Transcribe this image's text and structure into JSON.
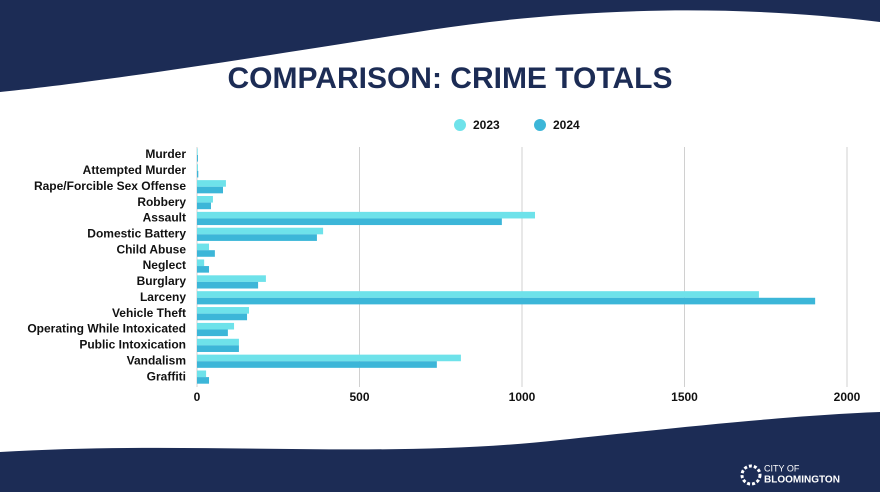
{
  "chart_data": {
    "type": "bar",
    "orientation": "horizontal",
    "title": "COMPARISON: CRIME TOTALS",
    "categories": [
      "Murder",
      "Attempted Murder",
      "Rape/Forcible Sex Offense",
      "Robbery",
      "Assault",
      "Domestic Battery",
      "Child Abuse",
      "Neglect",
      "Burglary",
      "Larceny",
      "Vehicle Theft",
      "Operating While Intoxicated",
      "Public Intoxication",
      "Vandalism",
      "Graffiti"
    ],
    "series": [
      {
        "name": "2023",
        "color": "#6ee2ea",
        "values": [
          2,
          3,
          89,
          49,
          1040,
          388,
          37,
          22,
          212,
          1729,
          160,
          114,
          129,
          812,
          28
        ]
      },
      {
        "name": "2024",
        "color": "#3cb6d8",
        "values": [
          3,
          4,
          80,
          43,
          938,
          369,
          55,
          37,
          188,
          1902,
          154,
          95,
          129,
          738,
          37
        ]
      }
    ],
    "xlim": [
      0,
      2000
    ],
    "xticks": [
      0,
      500,
      1000,
      1500,
      2000
    ],
    "grid": true,
    "legend": "top"
  },
  "footer": {
    "line1": "CITY OF",
    "line2": "BLOOMINGTON"
  }
}
